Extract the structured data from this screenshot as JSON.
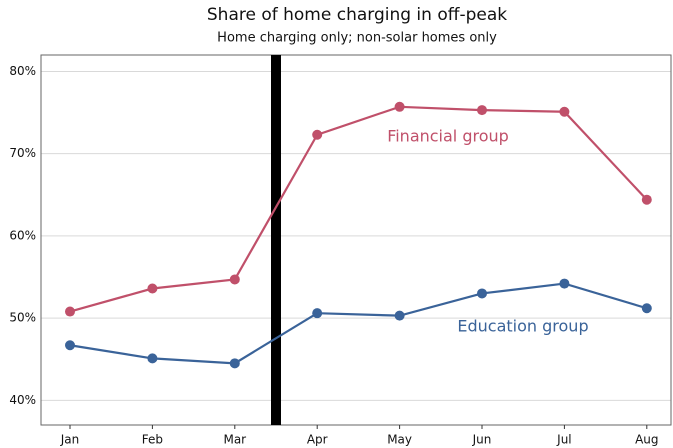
{
  "chart_data": {
    "type": "line",
    "title": "Share of home charging in off-peak",
    "subtitle": "Home charging only; non-solar homes only",
    "categories": [
      "Jan",
      "Feb",
      "Mar",
      "Apr",
      "May",
      "Jun",
      "Jul",
      "Aug"
    ],
    "series": [
      {
        "name": "Financial group",
        "color": "#c0506a",
        "values": [
          50.8,
          53.6,
          54.7,
          72.3,
          75.7,
          75.3,
          75.1,
          64.4
        ]
      },
      {
        "name": "Education group",
        "color": "#3a6399",
        "values": [
          46.7,
          45.1,
          44.5,
          50.6,
          50.3,
          53.0,
          54.2,
          51.2
        ]
      }
    ],
    "ylim": [
      37,
      82
    ],
    "yticks": [
      {
        "value": 40,
        "label": "40%"
      },
      {
        "value": 50,
        "label": "50%"
      },
      {
        "value": 60,
        "label": "60%"
      },
      {
        "value": 70,
        "label": "70%"
      },
      {
        "value": 80,
        "label": "80%"
      }
    ],
    "grid": true
  }
}
